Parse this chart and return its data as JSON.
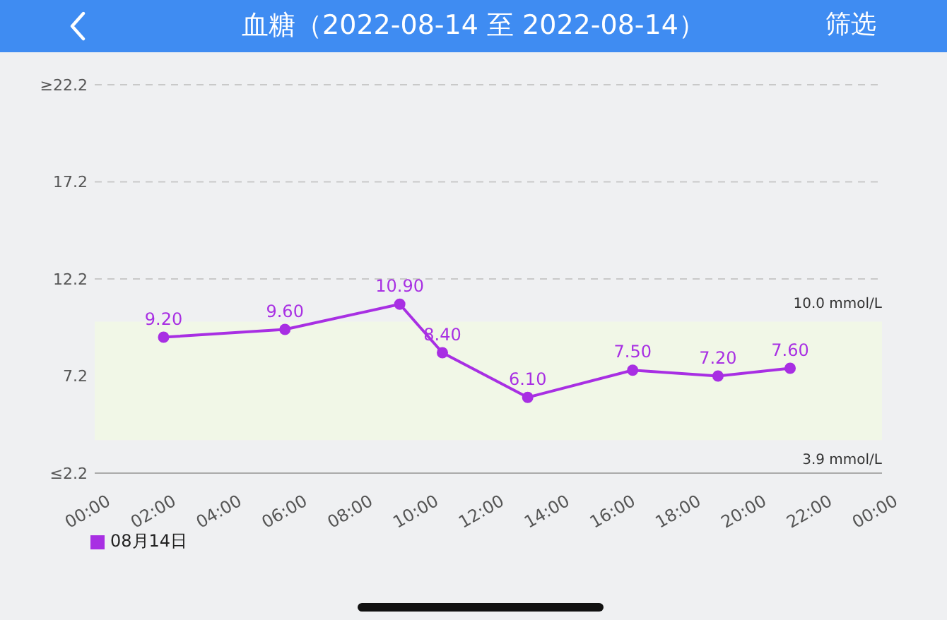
{
  "chart_data": {
    "type": "line",
    "title": "血糖（2022-08-14 至 2022-08-14）",
    "x": [
      2.1,
      5.8,
      9.3,
      10.6,
      13.2,
      16.4,
      19.0,
      21.2
    ],
    "series": [
      {
        "name": "08月14日",
        "color": "#a82fe3",
        "values": [
          9.2,
          9.6,
          10.9,
          8.4,
          6.1,
          7.5,
          7.2,
          7.6
        ],
        "value_labels": [
          "9.20",
          "9.60",
          "10.90",
          "8.40",
          "6.10",
          "7.50",
          "7.20",
          "7.60"
        ]
      }
    ],
    "xlim": [
      0,
      24
    ],
    "xticks": [
      {
        "value": 0,
        "label": "00:00"
      },
      {
        "value": 2,
        "label": "02:00"
      },
      {
        "value": 4,
        "label": "04:00"
      },
      {
        "value": 6,
        "label": "06:00"
      },
      {
        "value": 8,
        "label": "08:00"
      },
      {
        "value": 10,
        "label": "10:00"
      },
      {
        "value": 12,
        "label": "12:00"
      },
      {
        "value": 14,
        "label": "14:00"
      },
      {
        "value": 16,
        "label": "16:00"
      },
      {
        "value": 18,
        "label": "18:00"
      },
      {
        "value": 20,
        "label": "20:00"
      },
      {
        "value": 22,
        "label": "22:00"
      },
      {
        "value": 24,
        "label": "00:00"
      }
    ],
    "ylim": [
      2.2,
      22.2
    ],
    "yticks": [
      {
        "value": 2.2,
        "label": "≤2.2"
      },
      7.2,
      12.2,
      17.2,
      {
        "value": 22.2,
        "label": "≥22.2"
      }
    ],
    "grid": "y",
    "legend": "bottom left",
    "marker": "circle",
    "line_style": "solid",
    "bands": [
      {
        "axis": "y",
        "from": 3.9,
        "to": 10.0,
        "color": "#f1f7e7"
      }
    ],
    "annotations": [
      "筛选",
      {
        "text": "10.0 mmol/L",
        "y": 10.0
      },
      {
        "text": "3.9 mmol/L",
        "y": 3.9
      }
    ]
  }
}
